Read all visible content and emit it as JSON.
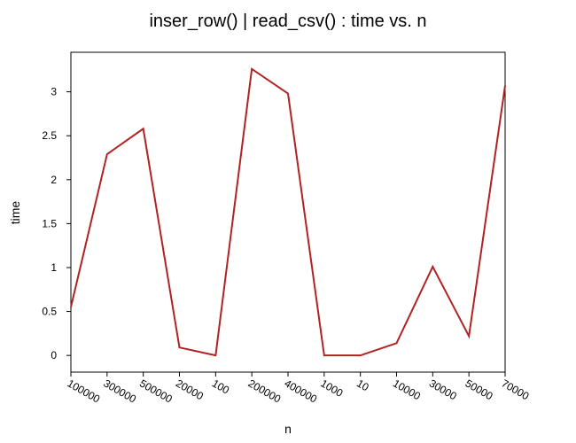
{
  "chart_data": {
    "type": "line",
    "title": "inser_row() | read_csv() : time vs. n",
    "xlabel": "n",
    "ylabel": "time",
    "categories": [
      "100000",
      "300000",
      "500000",
      "20000",
      "100",
      "200000",
      "400000",
      "1000",
      "10",
      "10000",
      "30000",
      "50000",
      "70000"
    ],
    "series": [
      {
        "values": [
          0.55,
          2.29,
          2.58,
          0.09,
          0.0,
          3.26,
          2.98,
          0.0,
          0.0,
          0.14,
          1.01,
          0.22,
          3.07
        ]
      }
    ],
    "ylim": [
      -0.19,
      3.45
    ],
    "yticks": [
      0,
      0.5,
      1,
      1.5,
      2,
      2.5,
      3
    ],
    "ytick_labels": [
      "0",
      "0.5",
      "1",
      "1.5",
      "2",
      "2.5",
      "3"
    ],
    "grid": false,
    "line_color": "#b22222"
  }
}
